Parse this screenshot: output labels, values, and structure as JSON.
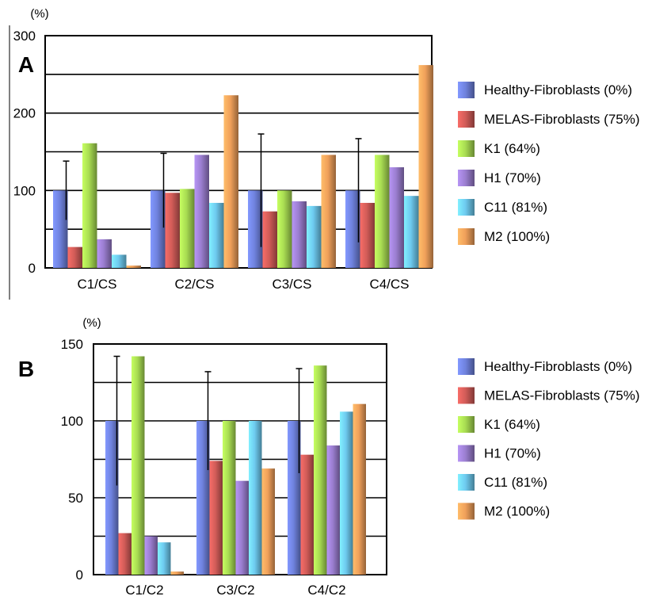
{
  "colors": {
    "Healthy-Fibroblasts (0%)": "#6f82de",
    "MELAS-Fibroblasts (75%)": "#d25c58",
    "K1 (64%)": "#a8dc52",
    "H1 (70%)": "#9b7ed0",
    "C11 (81%)": "#6ecbf0",
    "M2 (100%)": "#f0a05a"
  },
  "chart_data": [
    {
      "type": "bar",
      "panel_label": "A",
      "unit_label": "(%)",
      "categories": [
        "C1/CS",
        "C2/CS",
        "C3/CS",
        "C4/CS"
      ],
      "ylim": [
        0,
        300
      ],
      "yticks": [
        0,
        100,
        200,
        300
      ],
      "grid": true,
      "legend_position": "right",
      "series": [
        {
          "name": "Healthy-Fibroblasts (0%)",
          "values": [
            100,
            100,
            100,
            100
          ],
          "error": [
            38,
            48,
            73,
            67
          ]
        },
        {
          "name": "MELAS-Fibroblasts (75%)",
          "values": [
            27,
            97,
            73,
            84
          ],
          "error": [
            0,
            0,
            0,
            0
          ]
        },
        {
          "name": "K1 (64%)",
          "values": [
            161,
            102,
            100,
            146
          ],
          "error": [
            0,
            0,
            0,
            0
          ]
        },
        {
          "name": "H1 (70%)",
          "values": [
            37,
            146,
            86,
            130
          ],
          "error": [
            0,
            0,
            0,
            0
          ]
        },
        {
          "name": "C11 (81%)",
          "values": [
            17,
            84,
            80,
            93
          ],
          "error": [
            0,
            0,
            0,
            0
          ]
        },
        {
          "name": "M2 (100%)",
          "values": [
            3,
            223,
            146,
            262
          ],
          "error": [
            0,
            0,
            0,
            0
          ]
        }
      ]
    },
    {
      "type": "bar",
      "panel_label": "B",
      "unit_label": "(%)",
      "categories": [
        "C1/C2",
        "C3/C2",
        "C4/C2"
      ],
      "ylim": [
        0,
        150
      ],
      "yticks": [
        0,
        50,
        100,
        150
      ],
      "grid": true,
      "legend_position": "right",
      "series": [
        {
          "name": "Healthy-Fibroblasts (0%)",
          "values": [
            100,
            100,
            100
          ],
          "error": [
            42,
            32,
            34
          ]
        },
        {
          "name": "MELAS-Fibroblasts (75%)",
          "values": [
            27,
            74,
            78
          ],
          "error": [
            0,
            0,
            0
          ]
        },
        {
          "name": "K1 (64%)",
          "values": [
            142,
            100,
            136
          ],
          "error": [
            0,
            0,
            0
          ]
        },
        {
          "name": "H1 (70%)",
          "values": [
            25,
            61,
            84
          ],
          "error": [
            0,
            0,
            0
          ]
        },
        {
          "name": "C11 (81%)",
          "values": [
            21,
            100,
            106
          ],
          "error": [
            0,
            0,
            0
          ]
        },
        {
          "name": "M2 (100%)",
          "values": [
            2,
            69,
            111
          ],
          "error": [
            0,
            0,
            0
          ]
        }
      ]
    }
  ]
}
